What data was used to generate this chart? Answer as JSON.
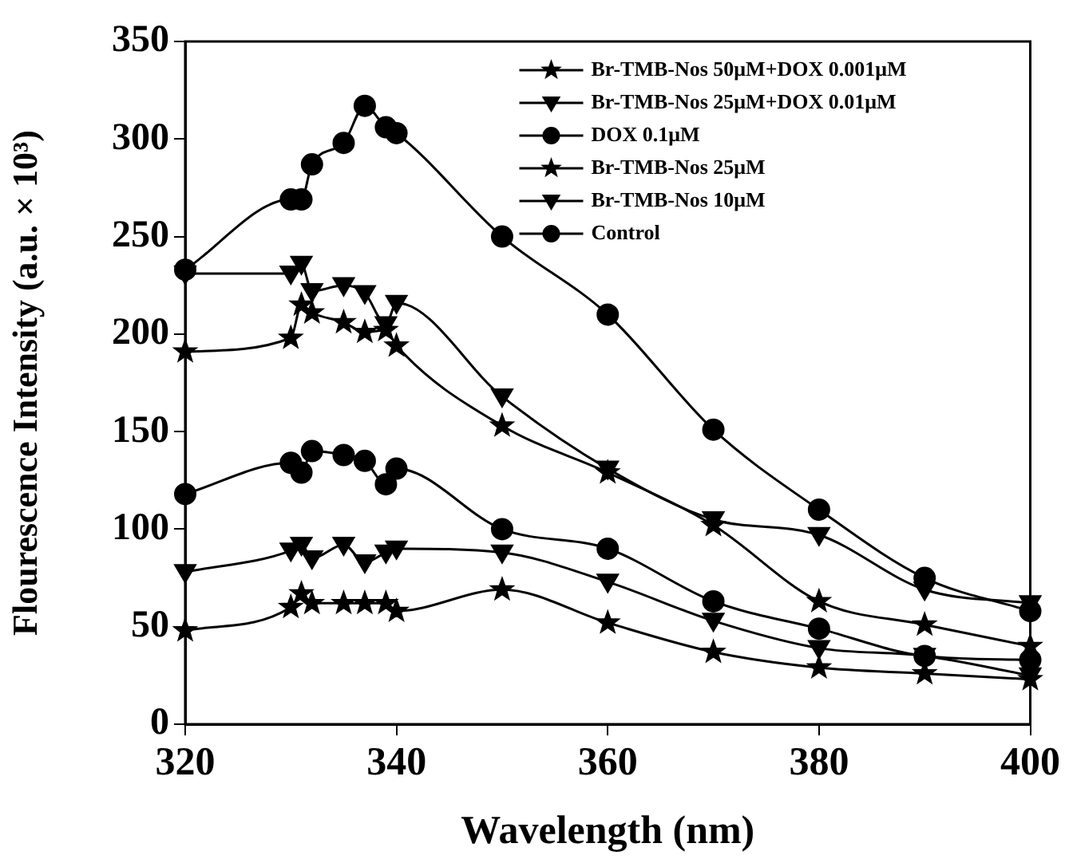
{
  "chart_data": {
    "type": "line",
    "xlabel": "Wavelength (nm)",
    "ylabel": "Flourescence Intensity (a.u. × 10³)",
    "x": [
      320,
      330,
      331,
      332,
      335,
      337,
      339,
      340,
      350,
      360,
      370,
      380,
      390,
      400
    ],
    "xlim": [
      320,
      400
    ],
    "xticks": [
      320,
      340,
      360,
      380,
      400
    ],
    "ylim": [
      0,
      350
    ],
    "yticks": [
      0,
      50,
      100,
      150,
      200,
      250,
      300,
      350
    ],
    "grid": false,
    "legend": "top right",
    "line_style": "solid",
    "series": [
      {
        "name": "Br-TMB-Nos 50μM+DOX 0.001μM",
        "color": "#000000",
        "marker": "star",
        "values": [
          48,
          60,
          67,
          62,
          62,
          62,
          62,
          58,
          69,
          52,
          37,
          29,
          26,
          23
        ]
      },
      {
        "name": "Br-TMB-Nos 25μM+DOX 0.01μM",
        "color": "#000000",
        "marker": "triangle",
        "values": [
          78,
          89,
          92,
          85,
          92,
          83,
          88,
          90,
          88,
          73,
          53,
          39,
          35,
          25
        ]
      },
      {
        "name": "DOX 0.1μM",
        "color": "#000000",
        "marker": "circle",
        "values": [
          118,
          134,
          129,
          140,
          138,
          135,
          123,
          131,
          100,
          90,
          63,
          49,
          35,
          33
        ]
      },
      {
        "name": "Br-TMB-Nos 25μM",
        "color": "#000000",
        "marker": "star",
        "values": [
          191,
          198,
          215,
          211,
          206,
          201,
          202,
          194,
          153,
          129,
          102,
          63,
          51,
          40
        ]
      },
      {
        "name": "Br-TMB-Nos 10μM",
        "color": "#000000",
        "marker": "triangle",
        "values": [
          231,
          231,
          236,
          222,
          225,
          221,
          205,
          216,
          168,
          131,
          105,
          97,
          69,
          62
        ]
      },
      {
        "name": "Control",
        "color": "#000000",
        "marker": "circle",
        "values": [
          233,
          269,
          269,
          287,
          298,
          317,
          306,
          303,
          250,
          210,
          151,
          110,
          75,
          58
        ]
      }
    ]
  }
}
